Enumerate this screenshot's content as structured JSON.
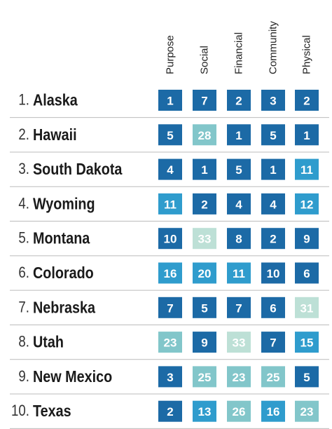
{
  "table": {
    "columns": [
      "Purpose",
      "Social",
      "Financial",
      "Community",
      "Physical"
    ],
    "rows": [
      {
        "rank": "1.",
        "name": "Alaska",
        "scores": [
          1,
          7,
          2,
          3,
          2
        ]
      },
      {
        "rank": "2.",
        "name": "Hawaii",
        "scores": [
          5,
          28,
          1,
          5,
          1
        ]
      },
      {
        "rank": "3.",
        "name": "South Dakota",
        "scores": [
          4,
          1,
          5,
          1,
          11
        ]
      },
      {
        "rank": "4.",
        "name": "Wyoming",
        "scores": [
          11,
          2,
          4,
          4,
          12
        ]
      },
      {
        "rank": "5.",
        "name": "Montana",
        "scores": [
          10,
          33,
          8,
          2,
          9
        ]
      },
      {
        "rank": "6.",
        "name": "Colorado",
        "scores": [
          16,
          20,
          11,
          10,
          6
        ]
      },
      {
        "rank": "7.",
        "name": "Nebraska",
        "scores": [
          7,
          5,
          7,
          6,
          31
        ]
      },
      {
        "rank": "8.",
        "name": "Utah",
        "scores": [
          23,
          9,
          33,
          7,
          15
        ]
      },
      {
        "rank": "9.",
        "name": "New Mexico",
        "scores": [
          3,
          25,
          23,
          25,
          5
        ]
      },
      {
        "rank": "10.",
        "name": "Texas",
        "scores": [
          2,
          13,
          26,
          16,
          23
        ]
      }
    ]
  }
}
